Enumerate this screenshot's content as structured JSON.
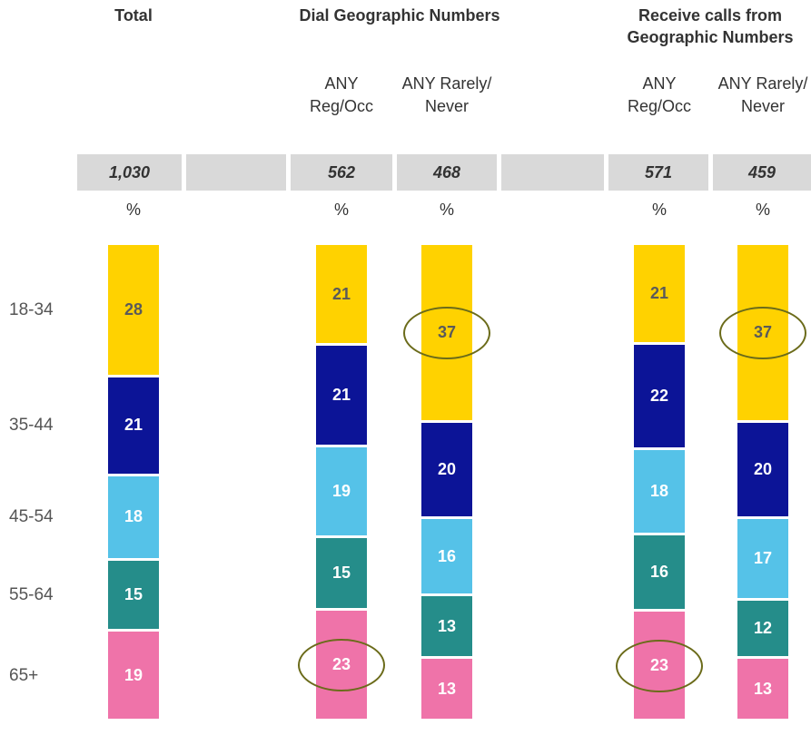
{
  "chart_data": {
    "type": "stacked_bar",
    "unit": "%",
    "series": [
      {
        "name": "18-34",
        "color": "#ffd200",
        "text_color": "#5a5a5a"
      },
      {
        "name": "35-44",
        "color": "#0c1497",
        "text_color": "#ffffff"
      },
      {
        "name": "45-54",
        "color": "#55c2e8",
        "text_color": "#ffffff"
      },
      {
        "name": "55-64",
        "color": "#258d8a",
        "text_color": "#ffffff"
      },
      {
        "name": "65+",
        "color": "#ef73a9",
        "text_color": "#ffffff"
      }
    ],
    "groups": [
      {
        "name": "Total",
        "columns": [
          {
            "label": null,
            "base": {
              "value": 1030,
              "label": "1,030"
            },
            "values": [
              28,
              21,
              18,
              15,
              19
            ],
            "circled": [
              false,
              false,
              false,
              false,
              false
            ]
          }
        ]
      },
      {
        "name": "Dial Geographic Numbers",
        "columns": [
          {
            "label": "ANY Reg/Occ",
            "base": 562,
            "values": [
              21,
              21,
              19,
              15,
              23
            ],
            "circled": [
              false,
              false,
              false,
              false,
              true
            ]
          },
          {
            "label": "ANY Rarely/ Never",
            "base": 468,
            "values": [
              37,
              20,
              16,
              13,
              13
            ],
            "circled": [
              true,
              false,
              false,
              false,
              false
            ]
          }
        ]
      },
      {
        "name": "Receive calls from Geographic Numbers",
        "columns": [
          {
            "label": "ANY Reg/Occ",
            "base": 571,
            "values": [
              21,
              22,
              18,
              16,
              23
            ],
            "circled": [
              false,
              false,
              false,
              false,
              true
            ]
          },
          {
            "label": "ANY Rarely/ Never",
            "base": 459,
            "values": [
              37,
              20,
              17,
              12,
              13
            ],
            "circled": [
              true,
              false,
              false,
              false,
              false
            ]
          }
        ]
      }
    ]
  }
}
